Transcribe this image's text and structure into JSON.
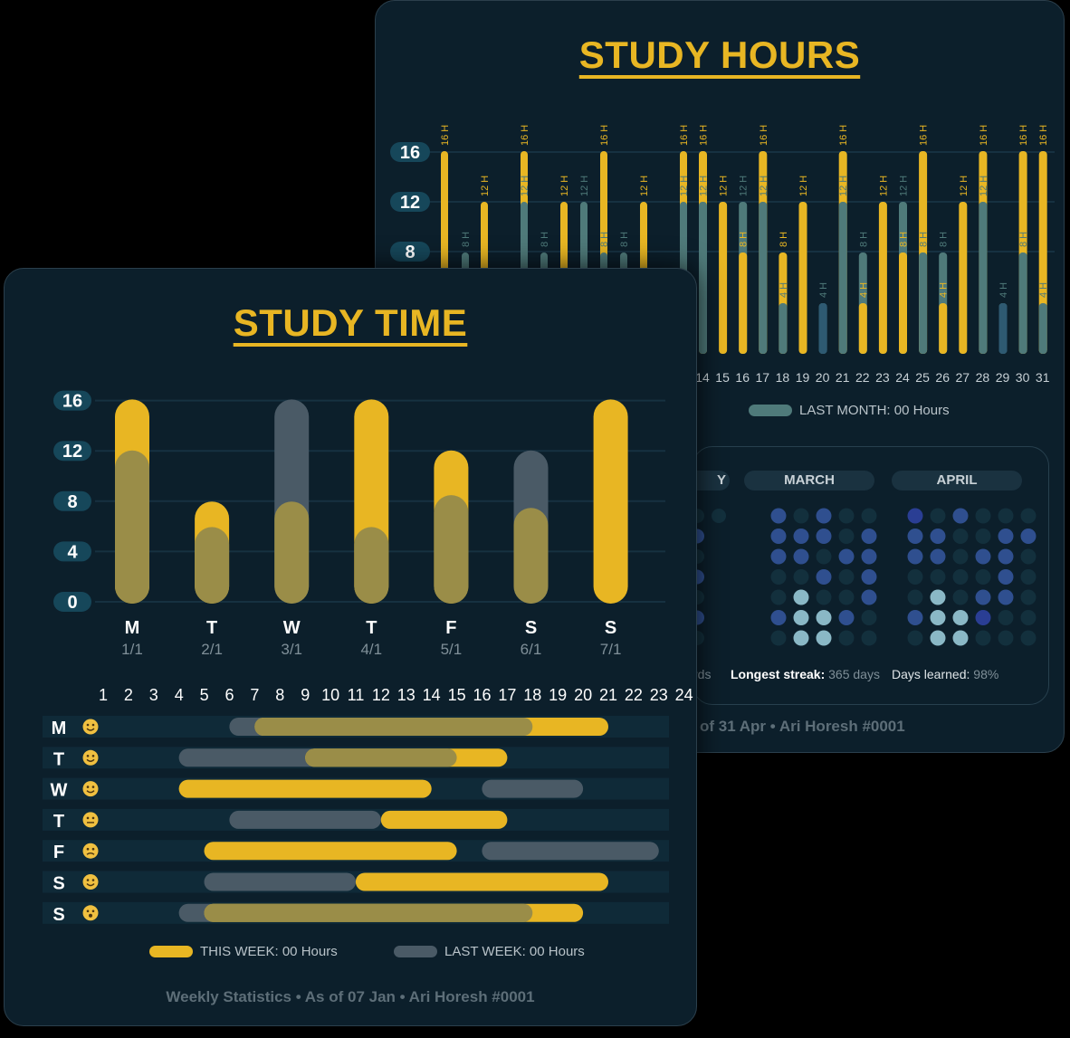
{
  "back_card": {
    "title": "STUDY HOURS",
    "legend_last_month": "LAST MONTH: 00 Hours",
    "y_ticks": [
      "16",
      "12",
      "8"
    ],
    "months": [
      "MARCH",
      "APRIL"
    ],
    "partial_month_fragment": "Y",
    "stat_fragment": "rds",
    "longest_streak_label": "Longest streak:",
    "longest_streak_value": "365 days",
    "days_learned_label": "Days learned:",
    "days_learned_value": "98%",
    "footer": "of 31 Apr • Ari Horesh #0001"
  },
  "front_card": {
    "title": "STUDY TIME",
    "legend_this_week": "THIS WEEK: 00 Hours",
    "legend_last_week": "LAST WEEK: 00 Hours",
    "footer": "Weekly Statistics • As of 07 Jan • Ari Horesh #0001"
  },
  "colors": {
    "background": "#0c1f2b",
    "this_period": "#e8b623",
    "last_period_gray": "#4a5a66",
    "last_period_teal": "#4f7a7a",
    "overlap": "#9a8d48",
    "heat_dark": "#13303d",
    "heat_mid": "#2f4f8f",
    "heat_blue": "#2a3e94",
    "heat_light": "#8ab8c6"
  },
  "chart_data": [
    {
      "type": "bar",
      "title": "STUDY HOURS",
      "y_ticks": [
        8,
        12,
        16
      ],
      "ylim": [
        0,
        16
      ],
      "bar_labels_unit": "H",
      "x": [
        14,
        15,
        16,
        17,
        18,
        19,
        20,
        21,
        22,
        23,
        24,
        25,
        26,
        27,
        28,
        29,
        30,
        31
      ],
      "series": [
        {
          "name": "THIS MONTH",
          "values": [
            16,
            12,
            8,
            16,
            8,
            12,
            0,
            16,
            4,
            12,
            8,
            16,
            4,
            12,
            16,
            0,
            16,
            16
          ]
        },
        {
          "name": "LAST MONTH",
          "values": [
            12,
            0,
            12,
            12,
            4,
            0,
            4,
            12,
            8,
            0,
            12,
            8,
            8,
            0,
            12,
            4,
            8,
            4
          ]
        }
      ],
      "partial_first_bars": [
        {
          "this": 16,
          "last": 4
        },
        {
          "this": 4,
          "last": 8
        },
        {
          "this": 12,
          "last": 0
        },
        {
          "this": 16,
          "last": 12
        },
        {
          "this": 4,
          "last": 8
        },
        {
          "this": 12,
          "last": 0
        },
        {
          "this": 4,
          "last": 12
        },
        {
          "this": 16,
          "last": 8
        },
        {
          "this": 4,
          "last": 8
        },
        {
          "this": 12,
          "last": 0
        },
        {
          "this": 16,
          "last": 12
        }
      ],
      "legend": [
        "LAST MONTH: 00 Hours"
      ]
    },
    {
      "type": "bar",
      "title": "STUDY TIME",
      "y_ticks": [
        0,
        4,
        8,
        12,
        16
      ],
      "ylim": [
        0,
        16
      ],
      "categories": [
        "M",
        "T",
        "W",
        "T",
        "F",
        "S",
        "S"
      ],
      "dates": [
        "1/1",
        "2/1",
        "3/1",
        "4/1",
        "5/1",
        "6/1",
        "7/1"
      ],
      "series": [
        {
          "name": "THIS WEEK",
          "values": [
            16,
            8,
            8,
            16,
            12,
            7.5,
            16
          ]
        },
        {
          "name": "LAST WEEK",
          "values": [
            12,
            6,
            16,
            6,
            8.5,
            12,
            0
          ]
        }
      ]
    },
    {
      "type": "timeline",
      "x_hours": [
        1,
        2,
        3,
        4,
        5,
        6,
        7,
        8,
        9,
        10,
        11,
        12,
        13,
        14,
        15,
        16,
        17,
        18,
        19,
        20,
        21,
        22,
        23,
        24
      ],
      "rows": [
        {
          "day": "M",
          "mood": "grin",
          "this_week": [
            [
              8,
              21
            ]
          ],
          "last_week": [
            [
              7,
              18
            ]
          ]
        },
        {
          "day": "T",
          "mood": "grin",
          "this_week": [
            [
              10,
              17
            ]
          ],
          "last_week": [
            [
              5,
              15
            ]
          ]
        },
        {
          "day": "W",
          "mood": "smile",
          "this_week": [
            [
              5,
              14
            ]
          ],
          "last_week": [
            [
              17,
              20
            ]
          ]
        },
        {
          "day": "T",
          "mood": "neutral",
          "this_week": [
            [
              13,
              17
            ]
          ],
          "last_week": [
            [
              7,
              12
            ]
          ]
        },
        {
          "day": "F",
          "mood": "frown",
          "this_week": [
            [
              6,
              15
            ]
          ],
          "last_week": [
            [
              17,
              23
            ]
          ]
        },
        {
          "day": "S",
          "mood": "smile",
          "this_week": [
            [
              12,
              21
            ]
          ],
          "last_week": [
            [
              6,
              11
            ]
          ]
        },
        {
          "day": "S",
          "mood": "surprised",
          "this_week": [
            [
              6,
              20
            ]
          ],
          "last_week": [
            [
              5,
              18
            ]
          ]
        }
      ],
      "legend": [
        "THIS WEEK: 00 Hours",
        "LAST WEEK: 00 Hours"
      ]
    },
    {
      "type": "heatmap",
      "months": [
        "MARCH",
        "APRIL"
      ],
      "levels_key": [
        "dark",
        "mid",
        "blue",
        "light"
      ],
      "march": [
        [
          "mid",
          "dark",
          "mid",
          "dark",
          "dark"
        ],
        [
          "mid",
          "mid",
          "mid",
          "dark",
          "mid"
        ],
        [
          "mid",
          "mid",
          "dark",
          "mid",
          "mid"
        ],
        [
          "dark",
          "dark",
          "mid",
          "dark",
          "mid"
        ],
        [
          "dark",
          "light",
          "dark",
          "dark",
          "mid"
        ],
        [
          "mid",
          "light",
          "light",
          "mid",
          "dark"
        ],
        [
          "dark",
          "light",
          "light",
          "dark",
          "dark"
        ]
      ],
      "april": [
        [
          "blue",
          "dark",
          "mid",
          "dark",
          "dark",
          "dark"
        ],
        [
          "mid",
          "mid",
          "dark",
          "dark",
          "mid",
          "mid"
        ],
        [
          "mid",
          "mid",
          "dark",
          "mid",
          "mid",
          "dark"
        ],
        [
          "dark",
          "dark",
          "dark",
          "dark",
          "mid",
          "dark"
        ],
        [
          "dark",
          "light",
          "dark",
          "mid",
          "mid",
          "dark"
        ],
        [
          "mid",
          "light",
          "light",
          "blue",
          "dark",
          "dark"
        ],
        [
          "dark",
          "light",
          "light",
          "dark",
          "dark",
          "dark"
        ]
      ],
      "stats": {
        "longest_streak": "365 days",
        "days_learned": "98%"
      }
    }
  ]
}
